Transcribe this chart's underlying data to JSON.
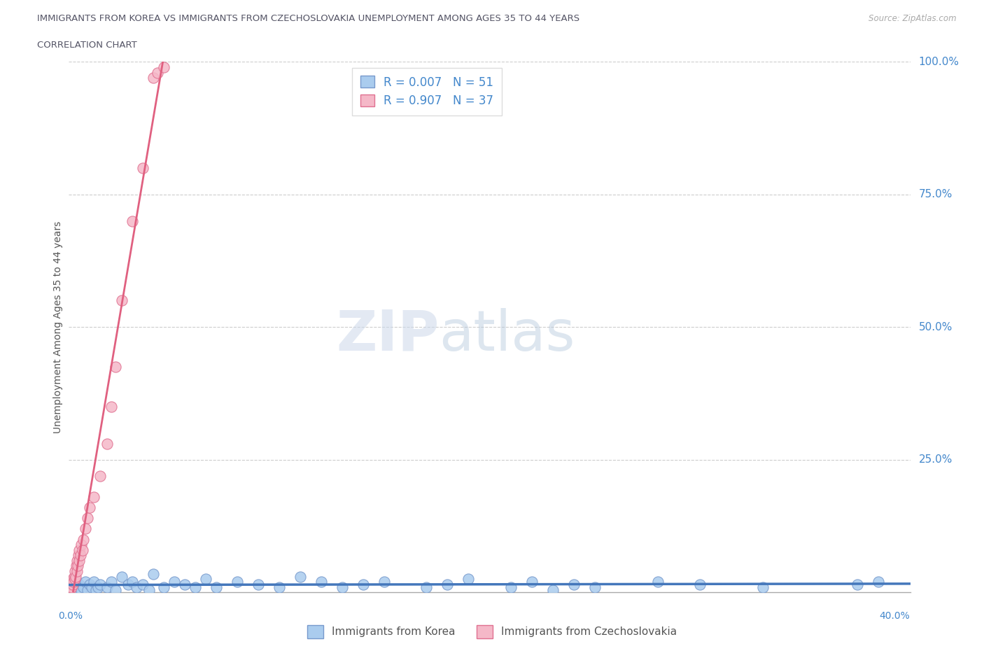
{
  "title_line1": "IMMIGRANTS FROM KOREA VS IMMIGRANTS FROM CZECHOSLOVAKIA UNEMPLOYMENT AMONG AGES 35 TO 44 YEARS",
  "title_line2": "CORRELATION CHART",
  "source": "Source: ZipAtlas.com",
  "ylabel": "Unemployment Among Ages 35 to 44 years",
  "xlim": [
    0.0,
    40.0
  ],
  "ylim": [
    0.0,
    100.0
  ],
  "yticks": [
    0,
    25,
    50,
    75,
    100
  ],
  "korea_color": "#aaccee",
  "korea_edge": "#7799cc",
  "czecho_color": "#f5b8c8",
  "czecho_edge": "#e07090",
  "korea_line_color": "#4477bb",
  "czecho_line_color": "#e06080",
  "R_korea": 0.007,
  "N_korea": 51,
  "R_czecho": 0.907,
  "N_czecho": 37,
  "legend_label_korea": "Immigrants from Korea",
  "legend_label_czecho": "Immigrants from Czechoslovakia",
  "title_color": "#555566",
  "axis_label_color": "#4488cc",
  "korea_x": [
    0.2,
    0.3,
    0.4,
    0.5,
    0.6,
    0.7,
    0.8,
    0.9,
    1.0,
    1.1,
    1.2,
    1.3,
    1.4,
    1.5,
    1.8,
    2.0,
    2.2,
    2.5,
    2.8,
    3.0,
    3.2,
    3.5,
    3.8,
    4.0,
    4.5,
    5.0,
    5.5,
    6.0,
    6.5,
    7.0,
    8.0,
    9.0,
    10.0,
    11.0,
    12.0,
    13.0,
    14.0,
    15.0,
    17.0,
    18.0,
    19.0,
    21.0,
    22.0,
    23.0,
    24.0,
    25.0,
    28.0,
    30.0,
    33.0,
    37.5,
    38.5
  ],
  "korea_y": [
    1.0,
    0.5,
    2.0,
    1.5,
    0.5,
    1.0,
    2.0,
    0.5,
    1.5,
    1.0,
    2.0,
    0.5,
    1.0,
    1.5,
    1.0,
    2.0,
    0.5,
    3.0,
    1.5,
    2.0,
    1.0,
    1.5,
    0.5,
    3.5,
    1.0,
    2.0,
    1.5,
    1.0,
    2.5,
    1.0,
    2.0,
    1.5,
    1.0,
    3.0,
    2.0,
    1.0,
    1.5,
    2.0,
    1.0,
    1.5,
    2.5,
    1.0,
    2.0,
    0.5,
    1.5,
    1.0,
    2.0,
    1.5,
    1.0,
    1.5,
    2.0
  ],
  "czecho_x": [
    0.05,
    0.08,
    0.1,
    0.12,
    0.15,
    0.18,
    0.2,
    0.22,
    0.25,
    0.28,
    0.3,
    0.32,
    0.35,
    0.38,
    0.4,
    0.42,
    0.45,
    0.48,
    0.5,
    0.55,
    0.6,
    0.65,
    0.7,
    0.8,
    0.9,
    1.0,
    1.2,
    1.5,
    1.8,
    2.0,
    2.2,
    2.5,
    3.0,
    3.5,
    4.0,
    4.2,
    4.5
  ],
  "czecho_y": [
    0.5,
    1.0,
    1.5,
    1.0,
    2.0,
    1.5,
    2.5,
    2.0,
    3.0,
    2.5,
    4.0,
    3.0,
    5.0,
    4.0,
    6.0,
    5.0,
    7.0,
    6.0,
    8.0,
    7.0,
    9.0,
    8.0,
    10.0,
    12.0,
    14.0,
    16.0,
    18.0,
    22.0,
    28.0,
    35.0,
    42.5,
    55.0,
    70.0,
    80.0,
    97.0,
    98.0,
    99.0
  ]
}
